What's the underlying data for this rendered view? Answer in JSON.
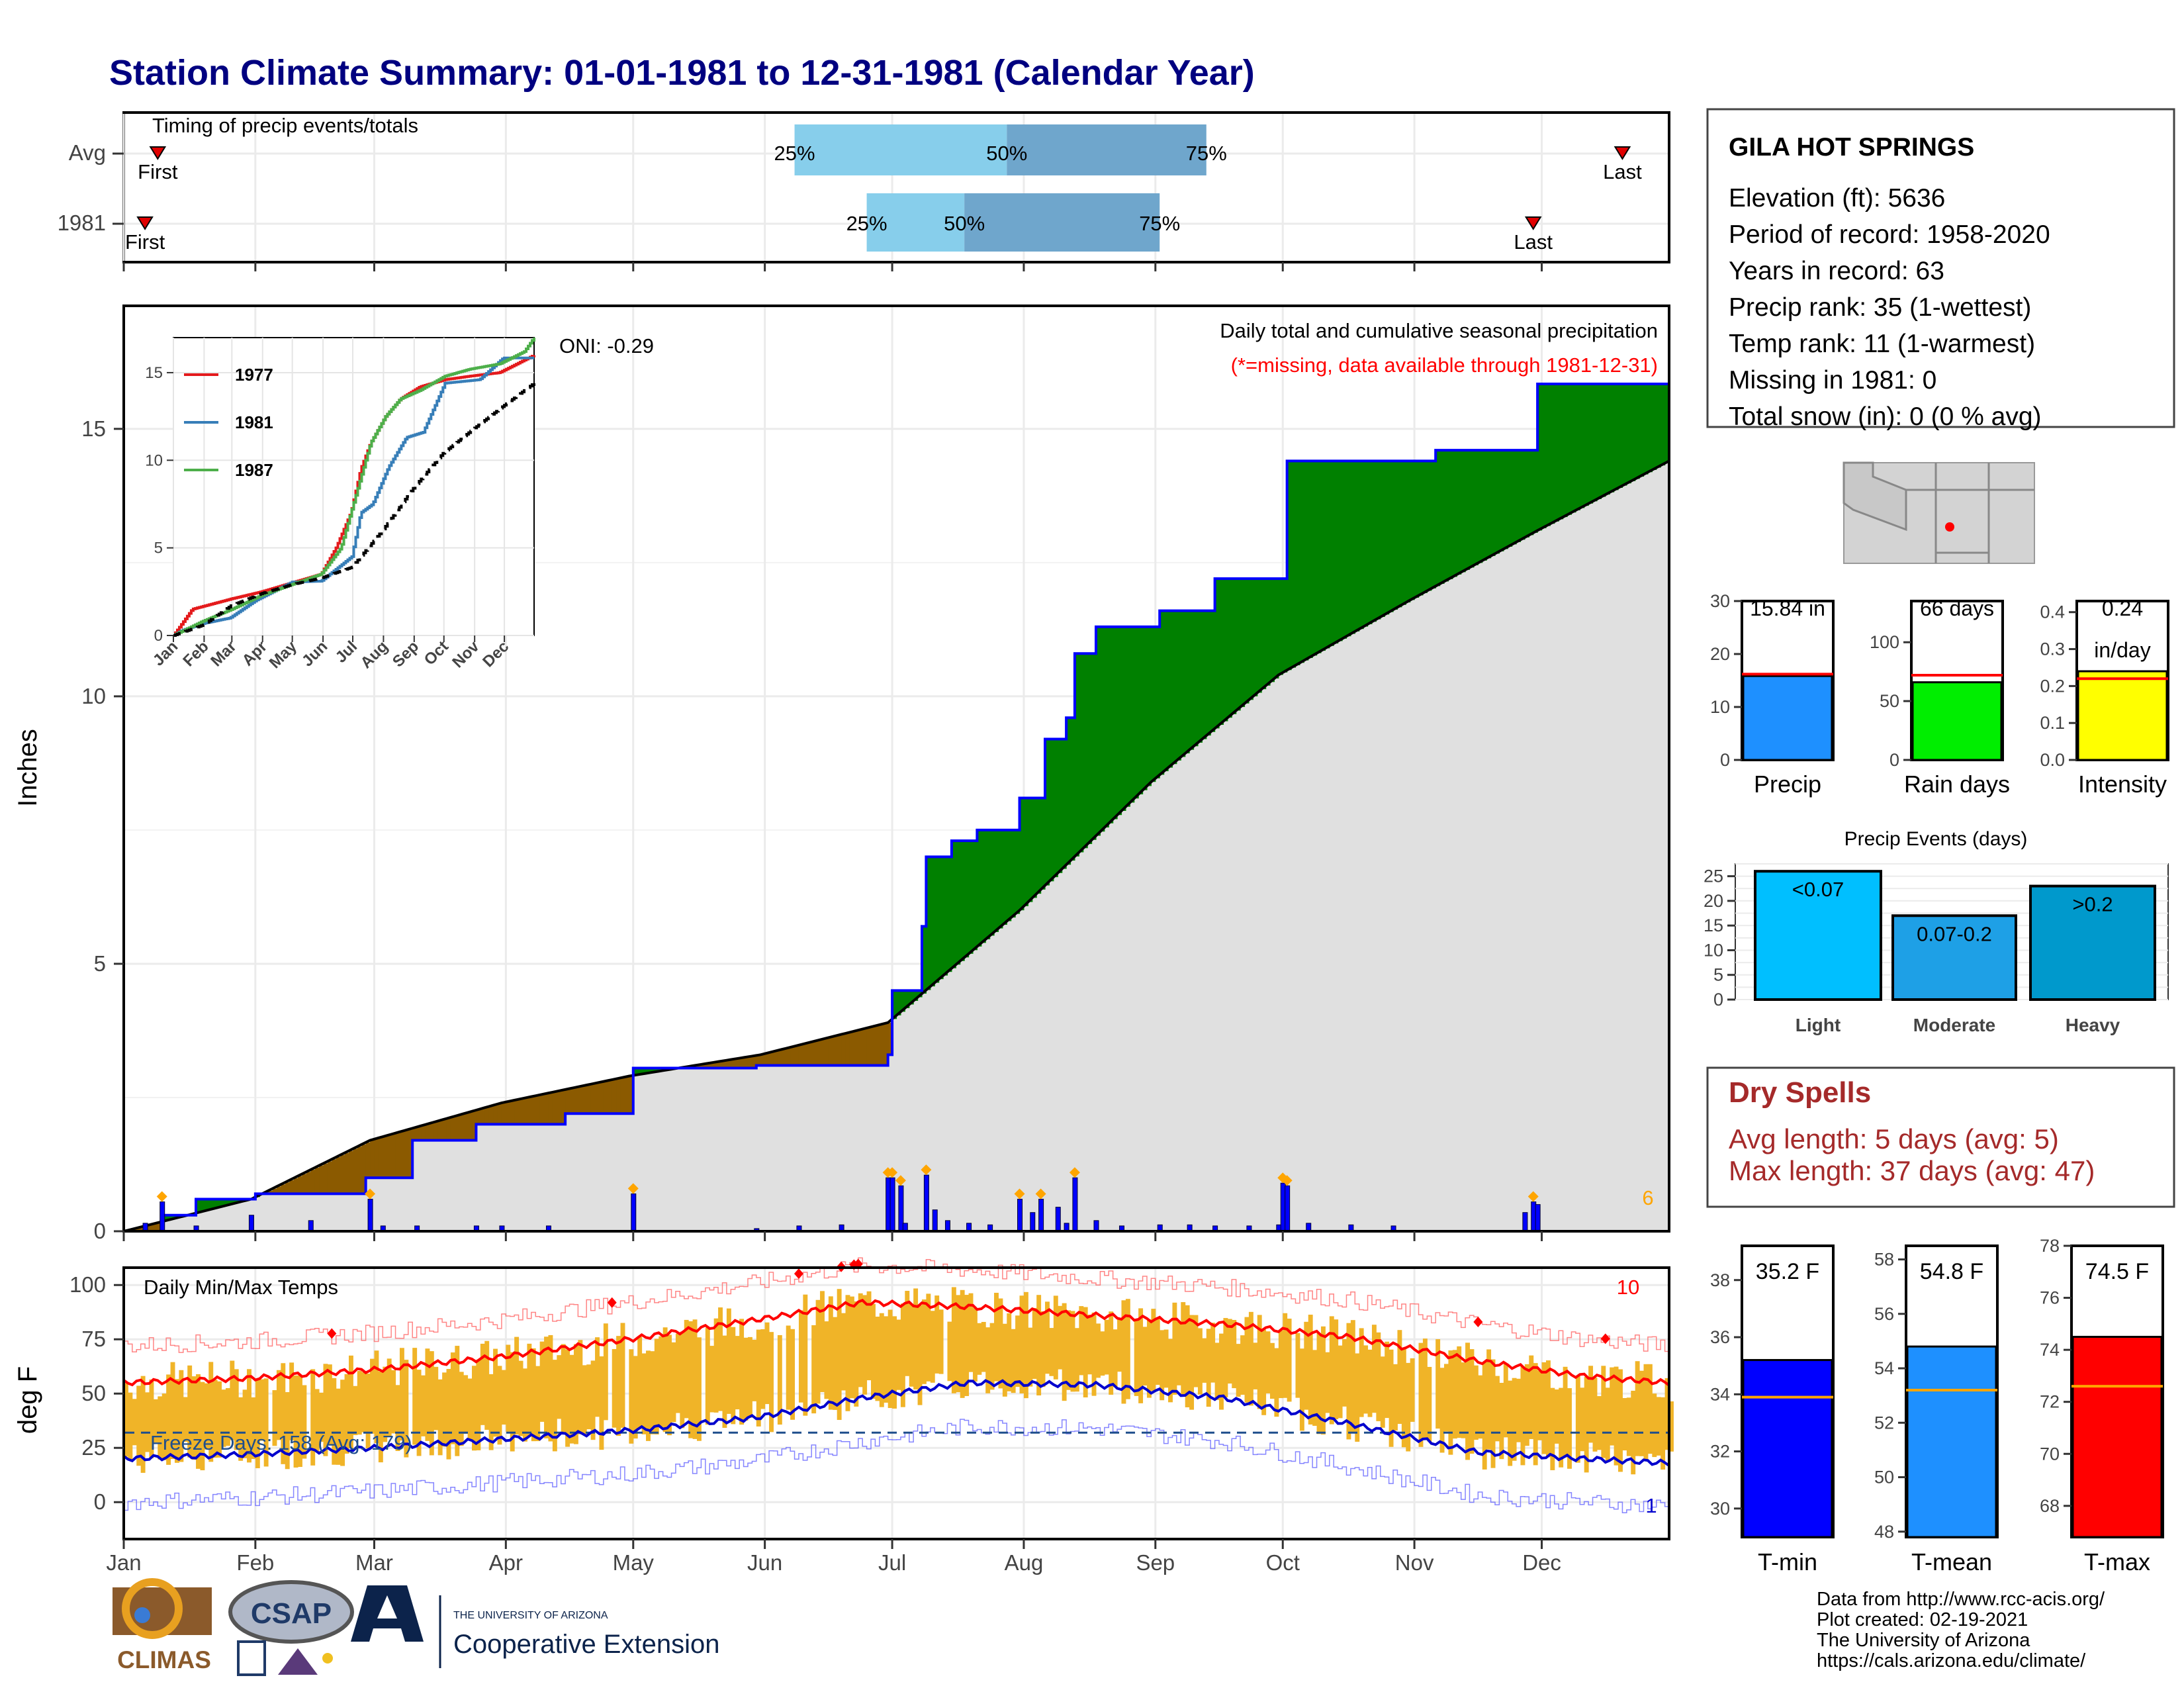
{
  "title": "Station Climate Summary: 01-01-1981 to 12-31-1981 (Calendar Year)",
  "months": [
    "Jan",
    "Feb",
    "Mar",
    "Apr",
    "May",
    "Jun",
    "Jul",
    "Aug",
    "Sep",
    "Oct",
    "Nov",
    "Dec"
  ],
  "colors": {
    "title": "#000080",
    "precip_line": "#0000ff",
    "above_fill": "#008000",
    "below_fill": "#8b5a00",
    "normal_fill": "#e0e0e0",
    "tmax": "#ff0000",
    "tmin": "#0000cd",
    "range_bar": "#f0b428",
    "light_blue": "#87ceeb",
    "mid_blue": "#6fa6cc",
    "dry_spell": "#a52a2a"
  },
  "timing": {
    "label": "Timing of precip events/totals",
    "rows": [
      "Avg",
      "1981"
    ],
    "first": "First",
    "last": "Last",
    "p25": "25%",
    "p50": "50%",
    "p75": "75%",
    "avg": {
      "first_day": 9,
      "p25_day": 159,
      "p50_day": 209,
      "p75_day": 256,
      "last_day": 354
    },
    "year": {
      "first_day": 6,
      "p25_day": 176,
      "p50_day": 199,
      "p75_day": 245,
      "last_day": 333
    }
  },
  "precip_panel": {
    "ylabel": "Inches",
    "yticks": [
      0,
      5,
      10,
      15
    ],
    "title": "Daily total and cumulative seasonal precipitation",
    "subtitle": "(*=missing, data available through 1981-12-31)",
    "oni": "ONI: -0.29",
    "count_label": "6"
  },
  "inset": {
    "yticks": [
      0,
      5,
      10,
      15
    ],
    "legend": [
      "1977",
      "1981",
      "1987"
    ],
    "legend_colors": [
      "#e41a1c",
      "#377eb8",
      "#4daf4a"
    ]
  },
  "temp_panel": {
    "ylabel": "deg F",
    "yticks": [
      0,
      25,
      50,
      75,
      100
    ],
    "title": "Daily Min/Max Temps",
    "freeze_label": "Freeze Days: 158 (Avg: 179)",
    "hot_count": "10",
    "cold_count": "1"
  },
  "station": {
    "name": "GILA HOT SPRINGS",
    "lines": [
      "Elevation (ft): 5636",
      "Period of record: 1958-2020",
      "Years in record: 63",
      "Precip rank: 35 (1-wettest)",
      "Temp rank: 11 (1-warmest)",
      "Missing in 1981: 0",
      "Total snow (in): 0 (0 % avg)"
    ]
  },
  "summary_bars": [
    {
      "label": "Precip",
      "value_text": "15.84 in",
      "value": 15.84,
      "avg": 16.2,
      "ymax": 30,
      "yticks": [
        0,
        10,
        20,
        30
      ],
      "color": "#1e90ff"
    },
    {
      "label": "Rain days",
      "value_text": "66 days",
      "value": 66,
      "avg": 72,
      "ymax": 135,
      "yticks": [
        0,
        50,
        100
      ],
      "color": "#00ee00"
    },
    {
      "label": "Intensity",
      "value_text": "0.24",
      "value_text2": "in/day",
      "value": 0.24,
      "avg": 0.22,
      "ymax": 0.43,
      "yticks": [
        0.0,
        0.1,
        0.2,
        0.3,
        0.4
      ],
      "color": "#ffff00"
    }
  ],
  "events": {
    "title": "Precip Events (days)",
    "yticks": [
      0,
      5,
      10,
      15,
      20,
      25
    ],
    "bars": [
      {
        "label": "Light",
        "inner": "<0.07",
        "value": 26,
        "color": "#00bfff"
      },
      {
        "label": "Moderate",
        "inner": "0.07-0.2",
        "value": 17,
        "color": "#1ea0e6"
      },
      {
        "label": "Heavy",
        "inner": ">0.2",
        "value": 23,
        "color": "#0099cc"
      }
    ]
  },
  "dry_spells": {
    "title": "Dry Spells",
    "avg": "Avg length: 5 days (avg: 5)",
    "max": "Max length: 37 days (avg: 47)"
  },
  "temp_bars": [
    {
      "label": "T-min",
      "value_text": "35.2 F",
      "value": 35.2,
      "avg": 33.9,
      "ymin": 29,
      "ymax": 39.2,
      "yticks": [
        30,
        32,
        34,
        36,
        38
      ],
      "color": "#0000ff"
    },
    {
      "label": "T-mean",
      "value_text": "54.8 F",
      "value": 54.8,
      "avg": 53.2,
      "ymin": 47.8,
      "ymax": 58.5,
      "yticks": [
        48,
        50,
        52,
        54,
        56,
        58
      ],
      "color": "#1e90ff"
    },
    {
      "label": "T-max",
      "value_text": "74.5 F",
      "value": 74.5,
      "avg": 72.6,
      "ymin": 66.8,
      "ymax": 78,
      "yticks": [
        68,
        70,
        72,
        74,
        76,
        78
      ],
      "color": "#ff0000"
    }
  ],
  "footer": {
    "lines": [
      "Data from http://www.rcc-acis.org/",
      "Plot created: 02-19-2021",
      "The University of Arizona",
      "https://cals.arizona.edu/climate/"
    ],
    "climas": "CLIMAS",
    "csap": "CSAP",
    "ua_small": "THE UNIVERSITY OF ARIZONA",
    "ua_big": "Cooperative Extension"
  },
  "chart_data": [
    {
      "type": "area",
      "title": "Daily total and cumulative seasonal precipitation",
      "ylabel": "Inches",
      "ylim": [
        0,
        17.3
      ],
      "x_unit": "day of year",
      "xlim": [
        1,
        365
      ],
      "series": [
        {
          "name": "1981",
          "x": [
            1,
            10,
            18,
            32,
            42,
            58,
            69,
            84,
            105,
            121,
            150,
            181,
            182,
            189,
            190,
            196,
            202,
            212,
            218,
            223,
            225,
            230,
            236,
            245,
            253,
            258,
            267,
            274,
            275,
            304,
            310,
            333,
            334,
            365
          ],
          "values": [
            0,
            0.3,
            0.6,
            0.7,
            0.7,
            1.0,
            1.7,
            2.0,
            2.2,
            3.05,
            3.1,
            3.3,
            4.5,
            5.7,
            7.0,
            7.3,
            7.5,
            8.1,
            9.2,
            9.6,
            10.8,
            11.3,
            11.3,
            11.6,
            11.6,
            12.2,
            12.2,
            12.2,
            14.4,
            14.4,
            14.6,
            14.6,
            15.84,
            15.84
          ]
        },
        {
          "x": [
            1,
            31,
            59,
            90,
            120,
            151,
            181,
            212,
            243,
            273,
            304,
            334,
            365
          ],
          "values": [
            0,
            0.6,
            1.7,
            2.4,
            2.9,
            3.3,
            3.9,
            6.0,
            8.4,
            10.4,
            11.8,
            13.1,
            14.4
          ]
        }
      ],
      "daily_x": [
        6,
        10,
        18,
        31,
        45,
        59,
        62,
        70,
        84,
        90,
        101,
        121,
        150,
        160,
        170,
        181,
        182,
        184,
        185,
        190,
        192,
        195,
        200,
        205,
        212,
        215,
        217,
        221,
        223,
        225,
        230,
        236,
        245,
        252,
        258,
        266,
        273,
        274,
        275,
        280,
        290,
        300,
        331,
        333,
        334
      ],
      "daily_values": [
        0.15,
        0.55,
        0.1,
        0.3,
        0.2,
        0.6,
        0.1,
        0.1,
        0.1,
        0.1,
        0.1,
        0.7,
        0.05,
        0.1,
        0.12,
        1.0,
        1.0,
        0.85,
        0.15,
        1.05,
        0.4,
        0.2,
        0.15,
        0.12,
        0.6,
        0.35,
        0.6,
        0.45,
        0.15,
        1.0,
        0.2,
        0.1,
        0.12,
        0.12,
        0.1,
        0.1,
        0.12,
        0.9,
        0.85,
        0.15,
        0.12,
        0.1,
        0.35,
        0.55,
        0.5
      ]
    },
    {
      "type": "line",
      "title": "",
      "xlim": [
        1,
        365
      ],
      "ylim": [
        0,
        17
      ],
      "series": [
        {
          "name": "1977",
          "x": [
            1,
            20,
            40,
            60,
            90,
            120,
            150,
            165,
            180,
            190,
            200,
            215,
            230,
            250,
            275,
            300,
            330,
            365
          ],
          "values": [
            0,
            1.5,
            1.8,
            2.1,
            2.5,
            3.0,
            3.5,
            5.0,
            7.0,
            9.5,
            11.0,
            12.5,
            13.5,
            14.2,
            14.6,
            14.8,
            15.0,
            16.0
          ]
        },
        {
          "name": "1981",
          "x": [
            1,
            10,
            32,
            58,
            84,
            121,
            150,
            181,
            190,
            202,
            218,
            236,
            253,
            275,
            310,
            334,
            365
          ],
          "values": [
            0,
            0.3,
            0.7,
            1.0,
            2.0,
            3.05,
            3.1,
            4.5,
            7.0,
            7.5,
            9.6,
            11.3,
            11.6,
            14.4,
            14.6,
            15.84,
            15.84
          ]
        },
        {
          "name": "1987",
          "x": [
            1,
            30,
            60,
            90,
            120,
            150,
            170,
            185,
            200,
            215,
            230,
            250,
            275,
            300,
            330,
            355,
            365
          ],
          "values": [
            0,
            0.8,
            1.5,
            2.3,
            2.9,
            3.5,
            5.0,
            8.0,
            11.0,
            12.5,
            13.5,
            14.0,
            14.8,
            15.2,
            15.5,
            16.2,
            17.0
          ]
        },
        {
          "x": [
            1,
            31,
            59,
            90,
            120,
            151,
            181,
            212,
            243,
            273,
            304,
            334,
            365
          ],
          "values": [
            0,
            0.6,
            1.7,
            2.4,
            2.9,
            3.3,
            3.9,
            6.0,
            8.4,
            10.4,
            11.8,
            13.1,
            14.4
          ]
        }
      ]
    },
    {
      "type": "line",
      "title": "Daily Min/Max Temps",
      "ylabel": "deg F",
      "ylim": [
        -17,
        108
      ],
      "x_unit": "day of year",
      "series": [
        {
          "name": "T-max",
          "x": [
            1,
            30,
            60,
            90,
            120,
            150,
            175,
            200,
            230,
            260,
            290,
            320,
            345,
            365
          ],
          "values": [
            55,
            57,
            61,
            67,
            75,
            84,
            92,
            90,
            86,
            82,
            76,
            65,
            58,
            55
          ]
        },
        {
          "name": "T-min",
          "x": [
            1,
            30,
            60,
            90,
            120,
            150,
            175,
            200,
            230,
            260,
            290,
            320,
            345,
            365
          ],
          "values": [
            20,
            22,
            25,
            29,
            33,
            39,
            48,
            55,
            54,
            48,
            36,
            23,
            20,
            18
          ]
        }
      ]
    }
  ]
}
